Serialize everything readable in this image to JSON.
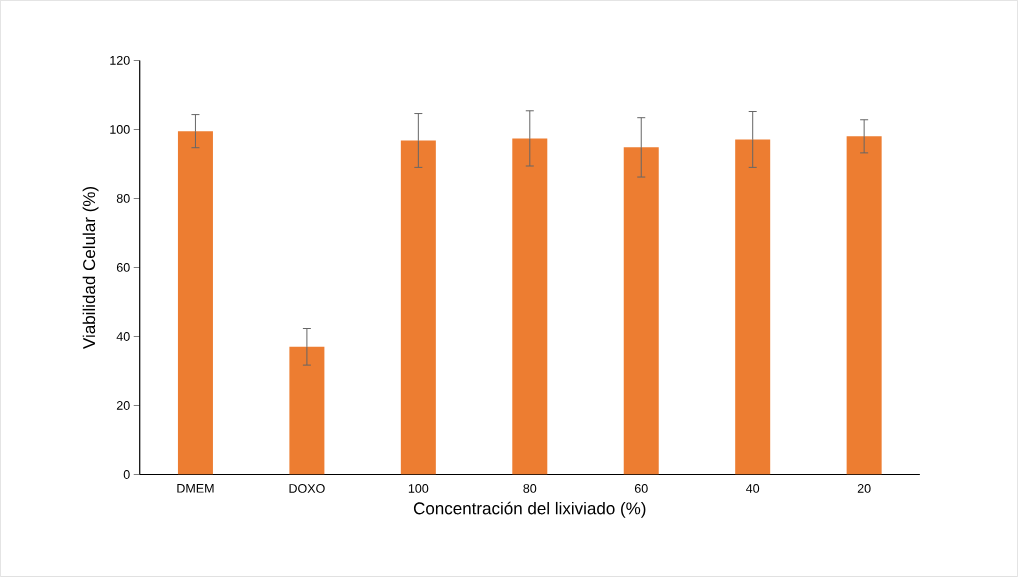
{
  "chart_data": {
    "type": "bar",
    "xlabel": "Concentración del lixiviado (%)",
    "ylabel": "Viabilidad Celular (%)",
    "categories": [
      "DMEM",
      "DOXO",
      "100",
      "80",
      "60",
      "40",
      "20"
    ],
    "values": [
      99.5,
      37,
      96.8,
      97.4,
      94.8,
      97.1,
      98
    ],
    "errors": [
      4.8,
      5.3,
      7.8,
      8,
      8.6,
      8.1,
      4.8
    ],
    "color": "#ed7d31",
    "ylim": [
      0,
      120
    ],
    "yticks": [
      0,
      20,
      40,
      60,
      80,
      100,
      120
    ],
    "grid": false
  }
}
